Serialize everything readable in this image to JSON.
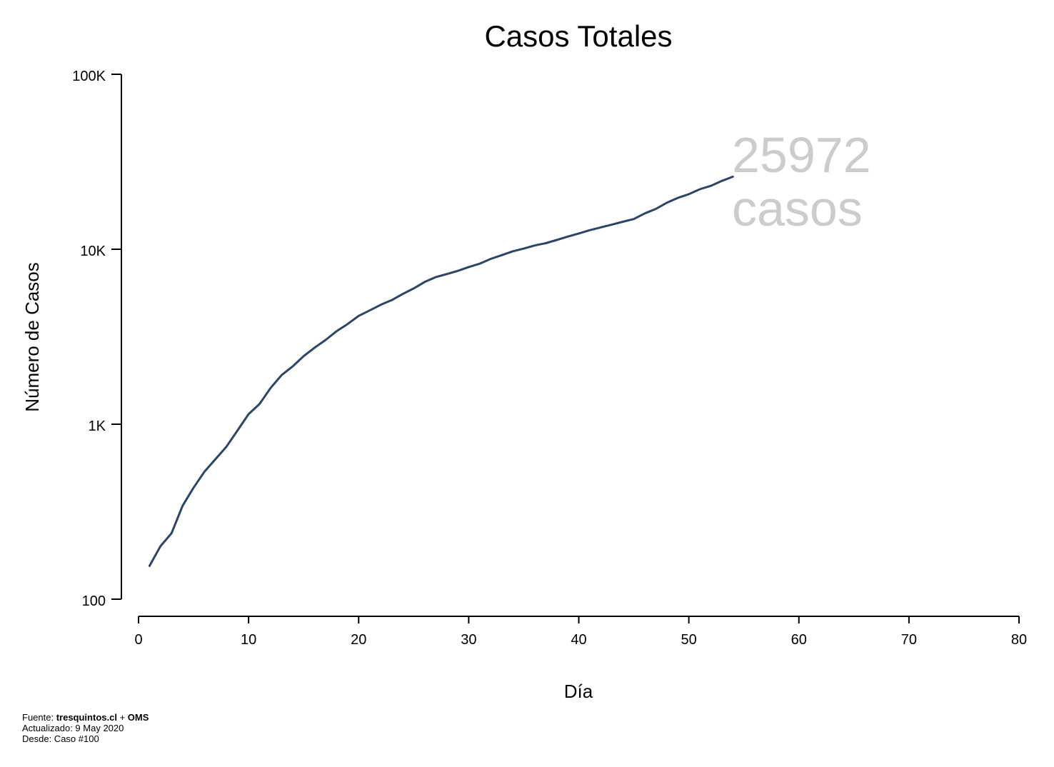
{
  "chart_data": {
    "type": "line",
    "title": "Casos Totales",
    "xlabel": "Día",
    "ylabel": "Número de Casos",
    "xlim": [
      0,
      80
    ],
    "ylim": [
      100,
      100000
    ],
    "yscale": "log",
    "grid": false,
    "line_color": "#2c4567",
    "x_ticks": [
      {
        "value": 0,
        "label": "0"
      },
      {
        "value": 10,
        "label": "10"
      },
      {
        "value": 20,
        "label": "20"
      },
      {
        "value": 30,
        "label": "30"
      },
      {
        "value": 40,
        "label": "40"
      },
      {
        "value": 50,
        "label": "50"
      },
      {
        "value": 60,
        "label": "60"
      },
      {
        "value": 70,
        "label": "70"
      },
      {
        "value": 80,
        "label": "80"
      }
    ],
    "y_ticks": [
      {
        "value": 100,
        "label": "100"
      },
      {
        "value": 1000,
        "label": "1K"
      },
      {
        "value": 10000,
        "label": "10K"
      },
      {
        "value": 100000,
        "label": "100K"
      }
    ],
    "series": [
      {
        "x": [
          1,
          2,
          3,
          4,
          5,
          6,
          7,
          8,
          9,
          10,
          11,
          12,
          13,
          14,
          15,
          16,
          17,
          18,
          19,
          20,
          21,
          22,
          23,
          24,
          25,
          26,
          27,
          28,
          29,
          30,
          31,
          32,
          33,
          34,
          35,
          36,
          37,
          38,
          39,
          40,
          41,
          42,
          43,
          44,
          45,
          46,
          47,
          48,
          49,
          50,
          51,
          52,
          53,
          54
        ],
        "y": [
          155,
          201,
          238,
          342,
          434,
          537,
          632,
          746,
          922,
          1142,
          1306,
          1610,
          1909,
          2139,
          2449,
          2738,
          3031,
          3404,
          3737,
          4161,
          4471,
          4815,
          5116,
          5546,
          5972,
          6501,
          6927,
          7213,
          7525,
          7917,
          8273,
          8807,
          9252,
          9730,
          10088,
          10507,
          10832,
          11296,
          11812,
          12306,
          12858,
          13331,
          13813,
          14365,
          14885,
          16023,
          17008,
          18435,
          19663,
          20643,
          22016,
          23048,
          24581,
          25972
        ]
      }
    ],
    "annotation": {
      "value": "25972",
      "unit": "casos"
    }
  },
  "source": {
    "fuente_prefix": "Fuente: ",
    "fuente_site": "tresquintos.cl",
    "fuente_sep": " + ",
    "fuente_org": "OMS",
    "updated": "Actualizado: 9 May 2020",
    "since": "Desde: Caso #100"
  }
}
